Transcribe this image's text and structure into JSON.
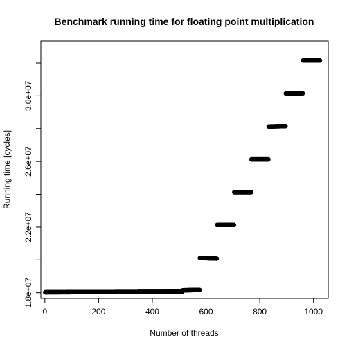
{
  "chart_data": {
    "type": "scatter",
    "title": "Benchmark running time for floating point multiplication",
    "xlabel": "Number of threads",
    "ylabel": "Running time [cycles]",
    "xlim": [
      -15,
      1055
    ],
    "ylim": [
      17650000,
      33350000
    ],
    "xticks": [
      0,
      200,
      400,
      600,
      800,
      1000
    ],
    "yticks": [
      18000000,
      20000000,
      22000000,
      24000000,
      26000000,
      28000000,
      30000000,
      32000000
    ],
    "ytick_labels": [
      "1.8e+07",
      "",
      "2.2e+07",
      "",
      "2.6e+07",
      "",
      "3.0e+07",
      ""
    ],
    "grid": false,
    "series": [
      {
        "segments": [
          {
            "x_start": 1,
            "x_end": 512,
            "y_start": 18030000,
            "y_end": 18060000
          },
          {
            "x_start": 513,
            "x_end": 576,
            "y_start": 18150000,
            "y_end": 18170000
          },
          {
            "x_start": 577,
            "x_end": 640,
            "y_start": 20120000,
            "y_end": 20080000
          },
          {
            "x_start": 641,
            "x_end": 704,
            "y_start": 22130000,
            "y_end": 22130000
          },
          {
            "x_start": 705,
            "x_end": 768,
            "y_start": 24130000,
            "y_end": 24130000
          },
          {
            "x_start": 769,
            "x_end": 832,
            "y_start": 26130000,
            "y_end": 26130000
          },
          {
            "x_start": 833,
            "x_end": 896,
            "y_start": 28130000,
            "y_end": 28150000
          },
          {
            "x_start": 897,
            "x_end": 960,
            "y_start": 30140000,
            "y_end": 30150000
          },
          {
            "x_start": 961,
            "x_end": 1024,
            "y_start": 32160000,
            "y_end": 32160000
          }
        ]
      }
    ]
  }
}
